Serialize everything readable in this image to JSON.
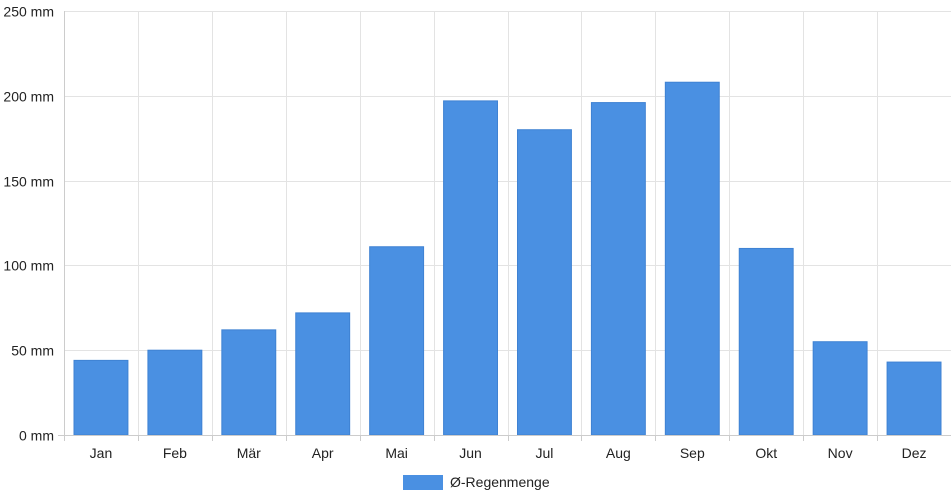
{
  "chart_data": {
    "type": "bar",
    "categories": [
      "Jan",
      "Feb",
      "Mär",
      "Apr",
      "Mai",
      "Jun",
      "Jul",
      "Aug",
      "Sep",
      "Okt",
      "Nov",
      "Dez"
    ],
    "series": [
      {
        "name": "Ø-Regenmenge",
        "values": [
          44,
          50,
          62,
          72,
          111,
          197,
          180,
          196,
          208,
          110,
          55,
          43
        ],
        "color": "#4a90e2"
      }
    ],
    "ylim": [
      0,
      250
    ],
    "yticks": [
      0,
      50,
      100,
      150,
      200,
      250
    ],
    "ytick_suffix": " mm",
    "grid": true,
    "legend": "bottom-center",
    "colors": {
      "grid": "#e3e3e3",
      "axis": "#cccccc",
      "text": "#222222"
    }
  }
}
